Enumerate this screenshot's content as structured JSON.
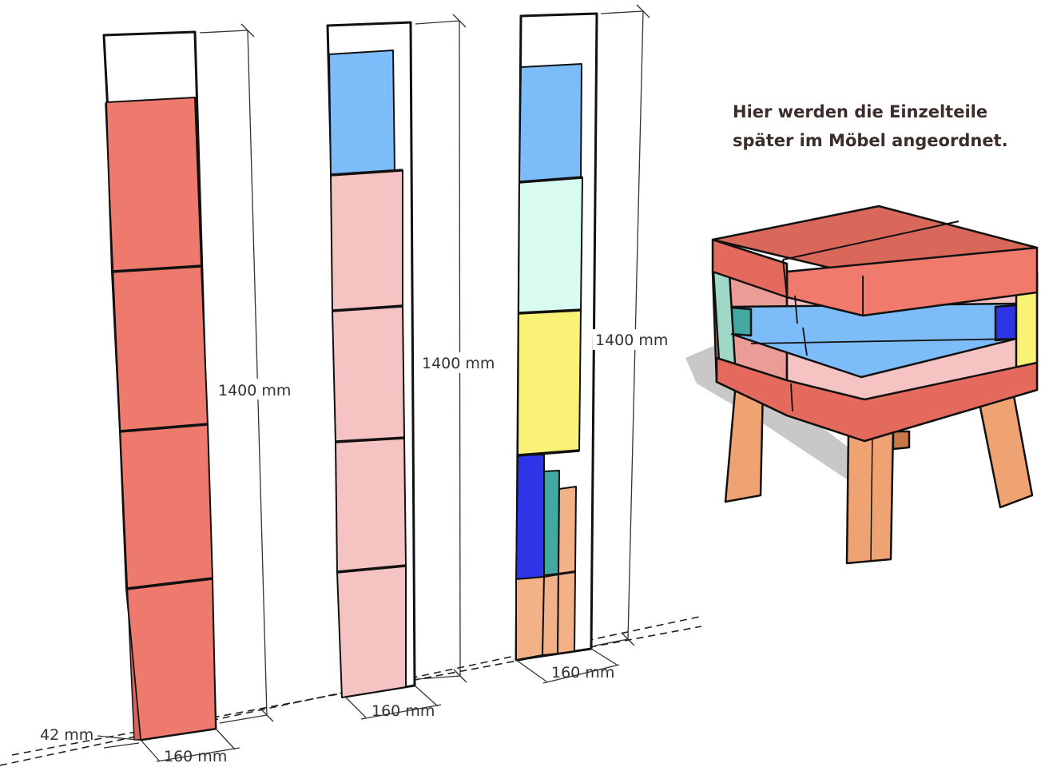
{
  "caption": {
    "line1": "Hier werden die Einzelteile",
    "line2": "später im Möbel angeordnet."
  },
  "dimensions": {
    "height": "1400 mm",
    "width": "160 mm",
    "thickness": "42 mm"
  },
  "colors": {
    "red": "#ee7a6e",
    "pink": "#f5c4c2",
    "light_blue": "#7cbdf9",
    "mint": "#d9faf0",
    "yellow": "#f9f277",
    "blue": "#2d35e6",
    "teal": "#42a8a0",
    "peach": "#f3b188",
    "stool_top": "#e46a5d",
    "stool_wood": "#f0a372"
  }
}
